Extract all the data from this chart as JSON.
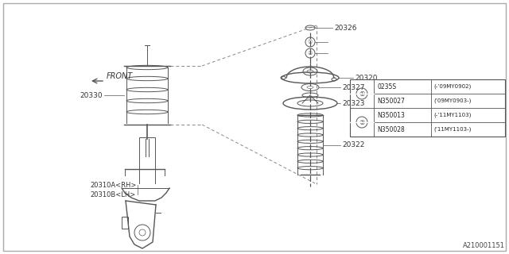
{
  "background_color": "#ffffff",
  "line_color": "#555555",
  "label_color": "#333333",
  "diagram_ref": "A210001151",
  "table_rows": [
    [
      "0235S",
      "(-’09MY0902)"
    ],
    [
      "N350027",
      "(’09MY0903-)"
    ],
    [
      "N350013",
      "(-’11MY1103)"
    ],
    [
      "N350028",
      "(’11MY1103-)"
    ]
  ],
  "figsize": [
    6.4,
    3.2
  ],
  "dpi": 100
}
